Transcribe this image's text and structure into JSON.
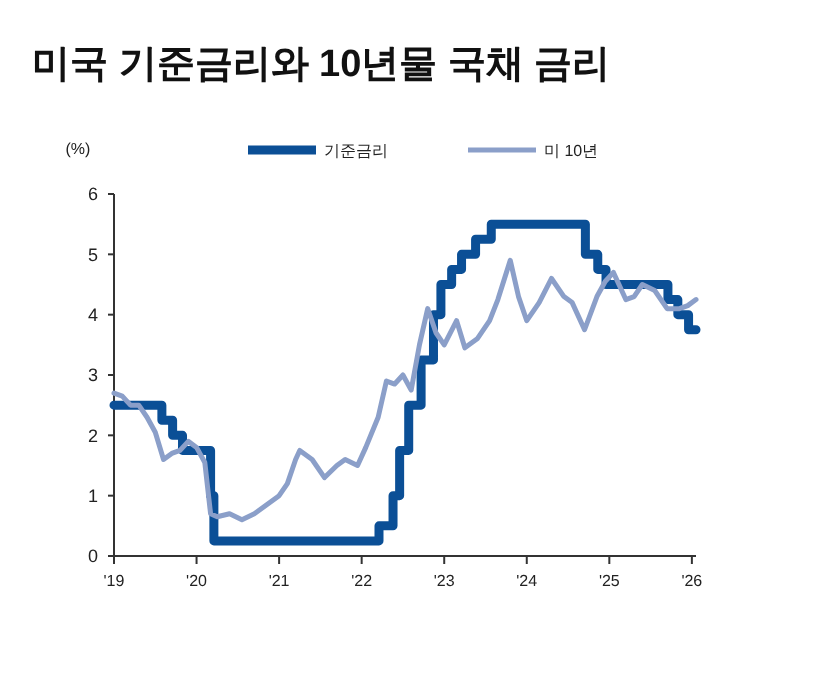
{
  "chart_data": {
    "type": "line",
    "title": "미국 기준금리와 10년물 국채 금리",
    "ylabel": "(%)",
    "legend": "top",
    "grid": false,
    "xlim": [
      2019,
      2026.05
    ],
    "xticks": [
      {
        "value": 2019,
        "label": "'19"
      },
      {
        "value": 2020,
        "label": "'20"
      },
      {
        "value": 2021,
        "label": "'21"
      },
      {
        "value": 2022,
        "label": "'22"
      },
      {
        "value": 2023,
        "label": "'23"
      },
      {
        "value": 2024,
        "label": "'24"
      },
      {
        "value": 2025,
        "label": "'25"
      },
      {
        "value": 2026,
        "label": "'26"
      }
    ],
    "ylim": [
      0,
      6
    ],
    "yticks": [
      0,
      1,
      2,
      3,
      4,
      5,
      6
    ],
    "series": [
      {
        "name": "기준금리",
        "type": "step",
        "color": "#0b4f96",
        "x": [
          2019,
          2019.58,
          2019.71,
          2019.83,
          2020.17,
          2020.21,
          2022.21,
          2022.38,
          2022.46,
          2022.57,
          2022.72,
          2022.87,
          2022.96,
          2023.09,
          2023.21,
          2023.38,
          2023.57,
          2024.71,
          2024.86,
          2024.96,
          2025.71,
          2025.83,
          2025.96,
          2026.05
        ],
        "values": [
          2.5,
          2.25,
          2.0,
          1.75,
          1.0,
          0.25,
          0.5,
          1.0,
          1.75,
          2.5,
          3.25,
          4.0,
          4.5,
          4.75,
          5.0,
          5.25,
          5.5,
          5.0,
          4.75,
          4.5,
          4.25,
          4.0,
          3.75,
          3.75
        ]
      },
      {
        "name": "미 10년",
        "color": "#8b9fc9",
        "x": [
          2019,
          2019.1,
          2019.2,
          2019.3,
          2019.4,
          2019.5,
          2019.6,
          2019.7,
          2019.8,
          2019.9,
          2020,
          2020.1,
          2020.17,
          2020.25,
          2020.4,
          2020.55,
          2020.7,
          2020.85,
          2021,
          2021.1,
          2021.2,
          2021.25,
          2021.4,
          2021.55,
          2021.7,
          2021.8,
          2021.95,
          2022.05,
          2022.2,
          2022.3,
          2022.4,
          2022.5,
          2022.6,
          2022.7,
          2022.8,
          2022.9,
          2023,
          2023.15,
          2023.25,
          2023.4,
          2023.55,
          2023.65,
          2023.8,
          2023.9,
          2024,
          2024.15,
          2024.3,
          2024.45,
          2024.55,
          2024.7,
          2024.85,
          2024.95,
          2025.05,
          2025.2,
          2025.3,
          2025.4,
          2025.55,
          2025.7,
          2025.85,
          2025.95,
          2026.05
        ],
        "values": [
          2.7,
          2.65,
          2.5,
          2.5,
          2.3,
          2.05,
          1.6,
          1.7,
          1.75,
          1.9,
          1.8,
          1.55,
          0.7,
          0.65,
          0.7,
          0.6,
          0.7,
          0.85,
          1.0,
          1.2,
          1.6,
          1.75,
          1.6,
          1.3,
          1.5,
          1.6,
          1.5,
          1.8,
          2.3,
          2.9,
          2.85,
          3.0,
          2.75,
          3.5,
          4.1,
          3.7,
          3.5,
          3.9,
          3.45,
          3.6,
          3.9,
          4.25,
          4.9,
          4.3,
          3.9,
          4.2,
          4.6,
          4.3,
          4.2,
          3.75,
          4.3,
          4.55,
          4.7,
          4.25,
          4.3,
          4.5,
          4.4,
          4.1,
          4.1,
          4.15,
          4.25
        ]
      }
    ]
  }
}
